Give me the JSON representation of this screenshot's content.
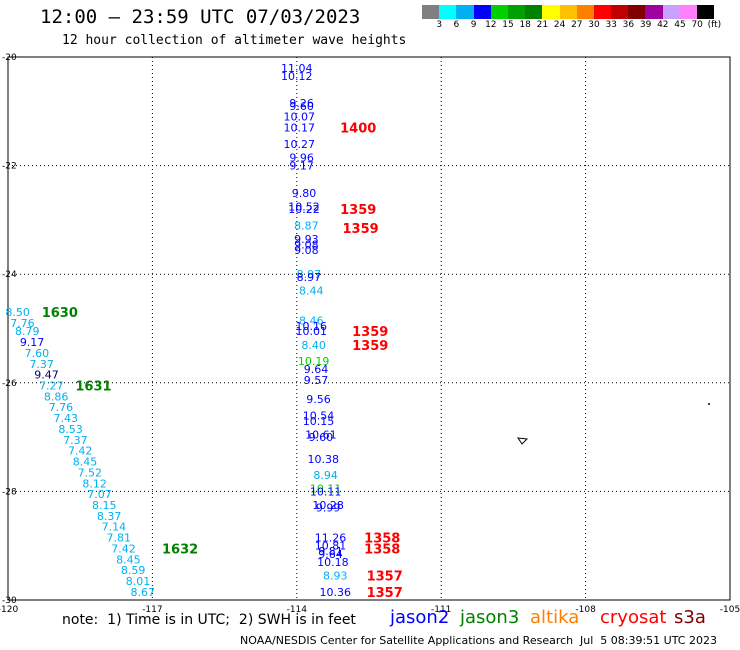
{
  "header": {
    "title": "12:00 – 23:59 UTC 07/03/2023",
    "subtitle": "12 hour collection of altimeter wave heights"
  },
  "legend": {
    "colors": [
      "#808080",
      "#00ffff",
      "#00b0f0",
      "#0000ff",
      "#00d000",
      "#00a000",
      "#008000",
      "#ffff00",
      "#ffc000",
      "#ff8000",
      "#ff0000",
      "#c00000",
      "#800000",
      "#a000a0",
      "#c8a0ff",
      "#ff80ff",
      "#000000"
    ],
    "labels": [
      "3",
      "6",
      "9",
      "12",
      "15",
      "18",
      "21",
      "24",
      "27",
      "30",
      "33",
      "36",
      "39",
      "42",
      "45",
      "70",
      "(ft)"
    ]
  },
  "chart_data": {
    "type": "scatter",
    "title": "12:00 – 23:59 UTC 07/03/2023",
    "xlim": [
      -120,
      -105
    ],
    "ylim": [
      -30,
      -20
    ],
    "xticks": [
      "-120",
      "-117",
      "-114",
      "-111",
      "-108",
      "-105"
    ],
    "yticks": [
      "-20",
      "-22",
      "-24",
      "-26",
      "-28",
      "-30"
    ],
    "grid": "dotted",
    "series": [
      {
        "name": "jason2",
        "color": "#0000ff"
      },
      {
        "name": "jason3",
        "color": "#008000"
      },
      {
        "name": "altika",
        "color": "#ff8000"
      },
      {
        "name": "cryosat",
        "color": "#ff0000"
      },
      {
        "name": "s3a",
        "color": "#800000"
      }
    ],
    "points": [
      {
        "x": -114.0,
        "y": -20.2,
        "label": "11.04",
        "color": "#0000ff"
      },
      {
        "x": -114.0,
        "y": -20.35,
        "label": "10.12",
        "color": "#0000ff"
      },
      {
        "x": -113.9,
        "y": -20.85,
        "label": "9.26",
        "color": "#0000ff"
      },
      {
        "x": -113.9,
        "y": -20.9,
        "label": "9.60",
        "color": "#0000ff"
      },
      {
        "x": -113.95,
        "y": -21.1,
        "label": "10.07",
        "color": "#0000ff"
      },
      {
        "x": -113.95,
        "y": -21.3,
        "label": "10.17",
        "color": "#0000ff"
      },
      {
        "x": -113.95,
        "y": -21.6,
        "label": "10.27",
        "color": "#0000ff"
      },
      {
        "x": -113.9,
        "y": -21.85,
        "label": "9.96",
        "color": "#0000ff"
      },
      {
        "x": -113.9,
        "y": -22.0,
        "label": "9.17",
        "color": "#0000ff"
      },
      {
        "x": -113.85,
        "y": -22.5,
        "label": "9.80",
        "color": "#0000ff"
      },
      {
        "x": -113.85,
        "y": -22.75,
        "label": "10.52",
        "color": "#0000ff"
      },
      {
        "x": -113.85,
        "y": -22.8,
        "label": "10.22",
        "color": "#0000ff"
      },
      {
        "x": -113.8,
        "y": -23.1,
        "label": "8.87",
        "color": "#00b0f0"
      },
      {
        "x": -113.8,
        "y": -23.35,
        "label": "9.93",
        "color": "#0000ff"
      },
      {
        "x": -113.8,
        "y": -23.45,
        "label": "9.08",
        "color": "#0000ff"
      },
      {
        "x": -113.8,
        "y": -23.55,
        "label": "9.08",
        "color": "#0000ff"
      },
      {
        "x": -113.75,
        "y": -24.0,
        "label": "8.97",
        "color": "#00b0f0"
      },
      {
        "x": -113.75,
        "y": -24.05,
        "label": "8.97",
        "color": "#0000ff"
      },
      {
        "x": -113.7,
        "y": -24.3,
        "label": "8.44",
        "color": "#00b0f0"
      },
      {
        "x": -113.7,
        "y": -24.85,
        "label": "8.46",
        "color": "#00b0f0"
      },
      {
        "x": -113.7,
        "y": -24.95,
        "label": "10.16",
        "color": "#0000ff"
      },
      {
        "x": -113.7,
        "y": -25.05,
        "label": "10.01",
        "color": "#0000ff"
      },
      {
        "x": -113.65,
        "y": -25.3,
        "label": "8.40",
        "color": "#00b0f0"
      },
      {
        "x": -113.65,
        "y": -25.6,
        "label": "10.19",
        "color": "#00d000"
      },
      {
        "x": -113.6,
        "y": -25.75,
        "label": "9.64",
        "color": "#0000ff"
      },
      {
        "x": -113.6,
        "y": -25.95,
        "label": "9.57",
        "color": "#0000ff"
      },
      {
        "x": -113.55,
        "y": -26.3,
        "label": "9.56",
        "color": "#0000ff"
      },
      {
        "x": -113.55,
        "y": -26.6,
        "label": "10.54",
        "color": "#0000ff"
      },
      {
        "x": -113.55,
        "y": -26.7,
        "label": "10.15",
        "color": "#0000ff"
      },
      {
        "x": -113.5,
        "y": -26.95,
        "label": "10.61",
        "color": "#0000ff"
      },
      {
        "x": -113.5,
        "y": -27.0,
        "label": "9.60",
        "color": "#0000ff"
      },
      {
        "x": -113.45,
        "y": -27.4,
        "label": "10.38",
        "color": "#0000ff"
      },
      {
        "x": -113.4,
        "y": -27.7,
        "label": "8.94",
        "color": "#00b0f0"
      },
      {
        "x": -113.4,
        "y": -27.95,
        "label": "10.11",
        "color": "#00d000"
      },
      {
        "x": -113.4,
        "y": -28.0,
        "label": "10.11",
        "color": "#0000ff"
      },
      {
        "x": -113.35,
        "y": -28.25,
        "label": "10.28",
        "color": "#0000ff"
      },
      {
        "x": -113.35,
        "y": -28.3,
        "label": "9.99",
        "color": "#0000ff"
      },
      {
        "x": -113.3,
        "y": -28.85,
        "label": "11.26",
        "color": "#0000ff"
      },
      {
        "x": -113.3,
        "y": -29.0,
        "label": "10.81",
        "color": "#0000ff"
      },
      {
        "x": -113.3,
        "y": -29.1,
        "label": "9.81",
        "color": "#0000ff"
      },
      {
        "x": -113.3,
        "y": -29.15,
        "label": "9.64",
        "color": "#0000ff"
      },
      {
        "x": -113.25,
        "y": -29.3,
        "label": "10.18",
        "color": "#0000ff"
      },
      {
        "x": -113.2,
        "y": -29.55,
        "label": "8.93",
        "color": "#00b0f0"
      },
      {
        "x": -113.2,
        "y": -29.85,
        "label": "10.36",
        "color": "#0000ff"
      },
      {
        "x": -119.8,
        "y": -24.7,
        "label": "8.50",
        "color": "#00b0f0"
      },
      {
        "x": -119.7,
        "y": -24.9,
        "label": "7.76",
        "color": "#00b0f0"
      },
      {
        "x": -119.6,
        "y": -25.05,
        "label": "8.79",
        "color": "#00b0f0"
      },
      {
        "x": -119.5,
        "y": -25.25,
        "label": "9.17",
        "color": "#0000ff"
      },
      {
        "x": -119.4,
        "y": -25.45,
        "label": "7.60",
        "color": "#00b0f0"
      },
      {
        "x": -119.3,
        "y": -25.65,
        "label": "7.37",
        "color": "#00b0f0"
      },
      {
        "x": -119.2,
        "y": -25.85,
        "label": "9.47",
        "color": "#000080"
      },
      {
        "x": -119.1,
        "y": -26.05,
        "label": "7.27",
        "color": "#00b0f0"
      },
      {
        "x": -119.0,
        "y": -26.25,
        "label": "8.86",
        "color": "#00b0f0"
      },
      {
        "x": -118.9,
        "y": -26.45,
        "label": "7.76",
        "color": "#00b0f0"
      },
      {
        "x": -118.8,
        "y": -26.65,
        "label": "7.43",
        "color": "#00b0f0"
      },
      {
        "x": -118.7,
        "y": -26.85,
        "label": "8.53",
        "color": "#00b0f0"
      },
      {
        "x": -118.6,
        "y": -27.05,
        "label": "7.37",
        "color": "#00b0f0"
      },
      {
        "x": -118.5,
        "y": -27.25,
        "label": "7.42",
        "color": "#00b0f0"
      },
      {
        "x": -118.4,
        "y": -27.45,
        "label": "8.45",
        "color": "#00b0f0"
      },
      {
        "x": -118.3,
        "y": -27.65,
        "label": "7.52",
        "color": "#00b0f0"
      },
      {
        "x": -118.2,
        "y": -27.85,
        "label": "8.12",
        "color": "#00b0f0"
      },
      {
        "x": -118.1,
        "y": -28.05,
        "label": "7.07",
        "color": "#00b0f0"
      },
      {
        "x": -118.0,
        "y": -28.25,
        "label": "8.15",
        "color": "#00b0f0"
      },
      {
        "x": -117.9,
        "y": -28.45,
        "label": "8.37",
        "color": "#00b0f0"
      },
      {
        "x": -117.8,
        "y": -28.65,
        "label": "7.14",
        "color": "#00b0f0"
      },
      {
        "x": -117.7,
        "y": -28.85,
        "label": "7.81",
        "color": "#00b0f0"
      },
      {
        "x": -117.6,
        "y": -29.05,
        "label": "7.42",
        "color": "#00b0f0"
      },
      {
        "x": -117.5,
        "y": -29.25,
        "label": "8.45",
        "color": "#00b0f0"
      },
      {
        "x": -117.4,
        "y": -29.45,
        "label": "8.59",
        "color": "#00b0f0"
      },
      {
        "x": -117.3,
        "y": -29.65,
        "label": "8.01",
        "color": "#00b0f0"
      },
      {
        "x": -117.2,
        "y": -29.85,
        "label": "8.67",
        "color": "#00b0f0"
      }
    ],
    "time_labels": [
      {
        "x": -113.1,
        "y": -21.3,
        "label": "1400",
        "color": "#ff0000"
      },
      {
        "x": -113.1,
        "y": -22.8,
        "label": "1359",
        "color": "#ff0000"
      },
      {
        "x": -113.05,
        "y": -23.15,
        "label": "1359",
        "color": "#ff0000"
      },
      {
        "x": -112.85,
        "y": -25.05,
        "label": "1359",
        "color": "#ff0000"
      },
      {
        "x": -112.85,
        "y": -25.3,
        "label": "1359",
        "color": "#ff0000"
      },
      {
        "x": -112.6,
        "y": -28.85,
        "label": "1358",
        "color": "#ff0000"
      },
      {
        "x": -112.6,
        "y": -29.05,
        "label": "1358",
        "color": "#ff0000"
      },
      {
        "x": -112.55,
        "y": -29.55,
        "label": "1357",
        "color": "#ff0000"
      },
      {
        "x": -112.55,
        "y": -29.85,
        "label": "1357",
        "color": "#ff0000"
      },
      {
        "x": -119.3,
        "y": -24.7,
        "label": "1630",
        "color": "#008000"
      },
      {
        "x": -118.6,
        "y": -26.05,
        "label": "1631",
        "color": "#008000"
      },
      {
        "x": -116.8,
        "y": -29.05,
        "label": "1632",
        "color": "#008000"
      }
    ]
  },
  "footer": {
    "note": "note:  1) Time is in UTC;  2) SWH is in feet",
    "satellites": [
      {
        "label": "jason2",
        "color": "#0000ff"
      },
      {
        "label": "jason3",
        "color": "#008000"
      },
      {
        "label": "altika",
        "color": "#ff8000"
      },
      {
        "label": "cryosat",
        "color": "#ff0000"
      },
      {
        "label": "s3a",
        "color": "#800000"
      }
    ],
    "credit": "NOAA/NESDIS Center for Satellite Applications and Research",
    "generated": "Jul  5 08:39:51 UTC 2023"
  }
}
